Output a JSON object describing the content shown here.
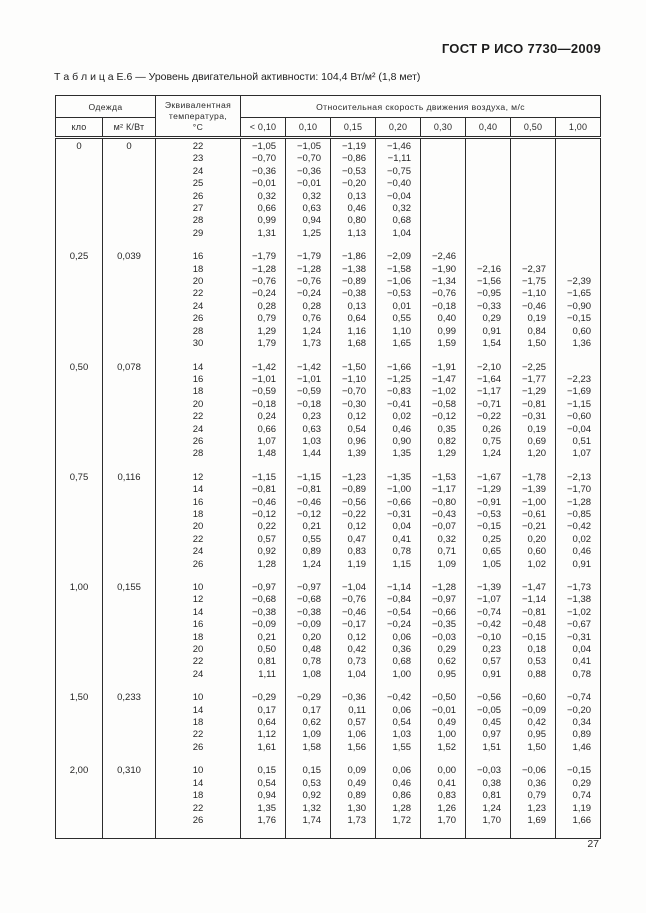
{
  "page": {
    "doc_header": "ГОСТ Р ИСО 7730—2009",
    "page_number": "27"
  },
  "table": {
    "caption": "Т а б л и ц а  Е.6 — Уровень двигательной активности: 104,4 Вт/м² (1,8 мет)",
    "header": {
      "clothing": "Одежда",
      "clo": "кло",
      "insulation": "м² К/Вт",
      "equiv_temp": "Эквивалентная\nтемпература,\n°С",
      "velocity": "Относительная скорость движения воздуха, м/с",
      "velocity_cols": [
        "< 0,10",
        "0,10",
        "0,15",
        "0,20",
        "0,30",
        "0,40",
        "0,50",
        "1,00"
      ]
    },
    "groups": [
      {
        "clo": "0",
        "insulation": "0",
        "rows": [
          {
            "temp": "22",
            "values": [
              "−1,05",
              "−1,05",
              "−1,19",
              "−1,46",
              "",
              "",
              "",
              ""
            ]
          },
          {
            "temp": "23",
            "values": [
              "−0,70",
              "−0,70",
              "−0,86",
              "−1,11",
              "",
              "",
              "",
              ""
            ]
          },
          {
            "temp": "24",
            "values": [
              "−0,36",
              "−0,36",
              "−0,53",
              "−0,75",
              "",
              "",
              "",
              ""
            ]
          },
          {
            "temp": "25",
            "values": [
              "−0,01",
              "−0,01",
              "−0,20",
              "−0,40",
              "",
              "",
              "",
              ""
            ]
          },
          {
            "temp": "26",
            "values": [
              "0,32",
              "0,32",
              "0,13",
              "−0,04",
              "",
              "",
              "",
              ""
            ]
          },
          {
            "temp": "27",
            "values": [
              "0,66",
              "0,63",
              "0,46",
              "0,32",
              "",
              "",
              "",
              ""
            ]
          },
          {
            "temp": "28",
            "values": [
              "0,99",
              "0,94",
              "0,80",
              "0,68",
              "",
              "",
              "",
              ""
            ]
          },
          {
            "temp": "29",
            "values": [
              "1,31",
              "1,25",
              "1,13",
              "1,04",
              "",
              "",
              "",
              ""
            ]
          }
        ]
      },
      {
        "clo": "0,25",
        "insulation": "0,039",
        "rows": [
          {
            "temp": "16",
            "values": [
              "−1,79",
              "−1,79",
              "−1,86",
              "−2,09",
              "−2,46",
              "",
              "",
              ""
            ]
          },
          {
            "temp": "18",
            "values": [
              "−1,28",
              "−1,28",
              "−1,38",
              "−1,58",
              "−1,90",
              "−2,16",
              "−2,37",
              ""
            ]
          },
          {
            "temp": "20",
            "values": [
              "−0,76",
              "−0,76",
              "−0,89",
              "−1,06",
              "−1,34",
              "−1,56",
              "−1,75",
              "−2,39"
            ]
          },
          {
            "temp": "22",
            "values": [
              "−0,24",
              "−0,24",
              "−0,38",
              "−0,53",
              "−0,76",
              "−0,95",
              "−1,10",
              "−1,65"
            ]
          },
          {
            "temp": "24",
            "values": [
              "0,28",
              "0,28",
              "0,13",
              "0,01",
              "−0,18",
              "−0,33",
              "−0,46",
              "−0,90"
            ]
          },
          {
            "temp": "26",
            "values": [
              "0,79",
              "0,76",
              "0,64",
              "0,55",
              "0,40",
              "0,29",
              "0,19",
              "−0,15"
            ]
          },
          {
            "temp": "28",
            "values": [
              "1,29",
              "1,24",
              "1,16",
              "1,10",
              "0,99",
              "0,91",
              "0,84",
              "0,60"
            ]
          },
          {
            "temp": "30",
            "values": [
              "1,79",
              "1,73",
              "1,68",
              "1,65",
              "1,59",
              "1,54",
              "1,50",
              "1,36"
            ]
          }
        ]
      },
      {
        "clo": "0,50",
        "insulation": "0,078",
        "rows": [
          {
            "temp": "14",
            "values": [
              "−1,42",
              "−1,42",
              "−1,50",
              "−1,66",
              "−1,91",
              "−2,10",
              "−2,25",
              ""
            ]
          },
          {
            "temp": "16",
            "values": [
              "−1,01",
              "−1,01",
              "−1,10",
              "−1,25",
              "−1,47",
              "−1,64",
              "−1,77",
              "−2,23"
            ]
          },
          {
            "temp": "18",
            "values": [
              "−0,59",
              "−0,59",
              "−0,70",
              "−0,83",
              "−1,02",
              "−1,17",
              "−1,29",
              "−1,69"
            ]
          },
          {
            "temp": "20",
            "values": [
              "−0,18",
              "−0,18",
              "−0,30",
              "−0,41",
              "−0,58",
              "−0,71",
              "−0,81",
              "−1,15"
            ]
          },
          {
            "temp": "22",
            "values": [
              "0,24",
              "0,23",
              "0,12",
              "0,02",
              "−0,12",
              "−0,22",
              "−0,31",
              "−0,60"
            ]
          },
          {
            "temp": "24",
            "values": [
              "0,66",
              "0,63",
              "0,54",
              "0,46",
              "0,35",
              "0,26",
              "0,19",
              "−0,04"
            ]
          },
          {
            "temp": "26",
            "values": [
              "1,07",
              "1,03",
              "0,96",
              "0,90",
              "0,82",
              "0,75",
              "0,69",
              "0,51"
            ]
          },
          {
            "temp": "28",
            "values": [
              "1,48",
              "1,44",
              "1,39",
              "1,35",
              "1,29",
              "1,24",
              "1,20",
              "1,07"
            ]
          }
        ]
      },
      {
        "clo": "0,75",
        "insulation": "0,116",
        "rows": [
          {
            "temp": "12",
            "values": [
              "−1,15",
              "−1,15",
              "−1,23",
              "−1,35",
              "−1,53",
              "−1,67",
              "−1,78",
              "−2,13"
            ]
          },
          {
            "temp": "14",
            "values": [
              "−0,81",
              "−0,81",
              "−0,89",
              "−1,00",
              "−1,17",
              "−1,29",
              "−1,39",
              "−1,70"
            ]
          },
          {
            "temp": "16",
            "values": [
              "−0,46",
              "−0,46",
              "−0,56",
              "−0,66",
              "−0,80",
              "−0,91",
              "−1,00",
              "−1,28"
            ]
          },
          {
            "temp": "18",
            "values": [
              "−0,12",
              "−0,12",
              "−0,22",
              "−0,31",
              "−0,43",
              "−0,53",
              "−0,61",
              "−0,85"
            ]
          },
          {
            "temp": "20",
            "values": [
              "0,22",
              "0,21",
              "0,12",
              "0,04",
              "−0,07",
              "−0,15",
              "−0,21",
              "−0,42"
            ]
          },
          {
            "temp": "22",
            "values": [
              "0,57",
              "0,55",
              "0,47",
              "0,41",
              "0,32",
              "0,25",
              "0,20",
              "0,02"
            ]
          },
          {
            "temp": "24",
            "values": [
              "0,92",
              "0,89",
              "0,83",
              "0,78",
              "0,71",
              "0,65",
              "0,60",
              "0,46"
            ]
          },
          {
            "temp": "26",
            "values": [
              "1,28",
              "1,24",
              "1,19",
              "1,15",
              "1,09",
              "1,05",
              "1,02",
              "0,91"
            ]
          }
        ]
      },
      {
        "clo": "1,00",
        "insulation": "0,155",
        "rows": [
          {
            "temp": "10",
            "values": [
              "−0,97",
              "−0,97",
              "−1,04",
              "−1,14",
              "−1,28",
              "−1,39",
              "−1,47",
              "−1,73"
            ]
          },
          {
            "temp": "12",
            "values": [
              "−0,68",
              "−0,68",
              "−0,76",
              "−0,84",
              "−0,97",
              "−1,07",
              "−1,14",
              "−1,38"
            ]
          },
          {
            "temp": "14",
            "values": [
              "−0,38",
              "−0,38",
              "−0,46",
              "−0,54",
              "−0,66",
              "−0,74",
              "−0,81",
              "−1,02"
            ]
          },
          {
            "temp": "16",
            "values": [
              "−0,09",
              "−0,09",
              "−0,17",
              "−0,24",
              "−0,35",
              "−0,42",
              "−0,48",
              "−0,67"
            ]
          },
          {
            "temp": "18",
            "values": [
              "0,21",
              "0,20",
              "0,12",
              "0,06",
              "−0,03",
              "−0,10",
              "−0,15",
              "−0,31"
            ]
          },
          {
            "temp": "20",
            "values": [
              "0,50",
              "0,48",
              "0,42",
              "0,36",
              "0,29",
              "0,23",
              "0,18",
              "0,04"
            ]
          },
          {
            "temp": "22",
            "values": [
              "0,81",
              "0,78",
              "0,73",
              "0,68",
              "0,62",
              "0,57",
              "0,53",
              "0,41"
            ]
          },
          {
            "temp": "24",
            "values": [
              "1,11",
              "1,08",
              "1,04",
              "1,00",
              "0,95",
              "0,91",
              "0,88",
              "0,78"
            ]
          }
        ]
      },
      {
        "clo": "1,50",
        "insulation": "0,233",
        "rows": [
          {
            "temp": "10",
            "values": [
              "−0,29",
              "−0,29",
              "−0,36",
              "−0,42",
              "−0,50",
              "−0,56",
              "−0,60",
              "−0,74"
            ]
          },
          {
            "temp": "14",
            "values": [
              "0,17",
              "0,17",
              "0,11",
              "0,06",
              "−0,01",
              "−0,05",
              "−0,09",
              "−0,20"
            ]
          },
          {
            "temp": "18",
            "values": [
              "0,64",
              "0,62",
              "0,57",
              "0,54",
              "0,49",
              "0,45",
              "0,42",
              "0,34"
            ]
          },
          {
            "temp": "22",
            "values": [
              "1,12",
              "1,09",
              "1,06",
              "1,03",
              "1,00",
              "0,97",
              "0,95",
              "0,89"
            ]
          },
          {
            "temp": "26",
            "values": [
              "1,61",
              "1,58",
              "1,56",
              "1,55",
              "1,52",
              "1,51",
              "1,50",
              "1,46"
            ]
          }
        ]
      },
      {
        "clo": "2,00",
        "insulation": "0,310",
        "rows": [
          {
            "temp": "10",
            "values": [
              "0,15",
              "0,15",
              "0,09",
              "0,06",
              "0,00",
              "−0,03",
              "−0,06",
              "−0,15"
            ]
          },
          {
            "temp": "14",
            "values": [
              "0,54",
              "0,53",
              "0,49",
              "0,46",
              "0,41",
              "0,38",
              "0,36",
              "0,29"
            ]
          },
          {
            "temp": "18",
            "values": [
              "0,94",
              "0,92",
              "0,89",
              "0,86",
              "0,83",
              "0,81",
              "0,79",
              "0,74"
            ]
          },
          {
            "temp": "22",
            "values": [
              "1,35",
              "1,32",
              "1,30",
              "1,28",
              "1,26",
              "1,24",
              "1,23",
              "1,19"
            ]
          },
          {
            "temp": "26",
            "values": [
              "1,76",
              "1,74",
              "1,73",
              "1,72",
              "1,70",
              "1,70",
              "1,69",
              "1,66"
            ]
          }
        ]
      }
    ]
  }
}
